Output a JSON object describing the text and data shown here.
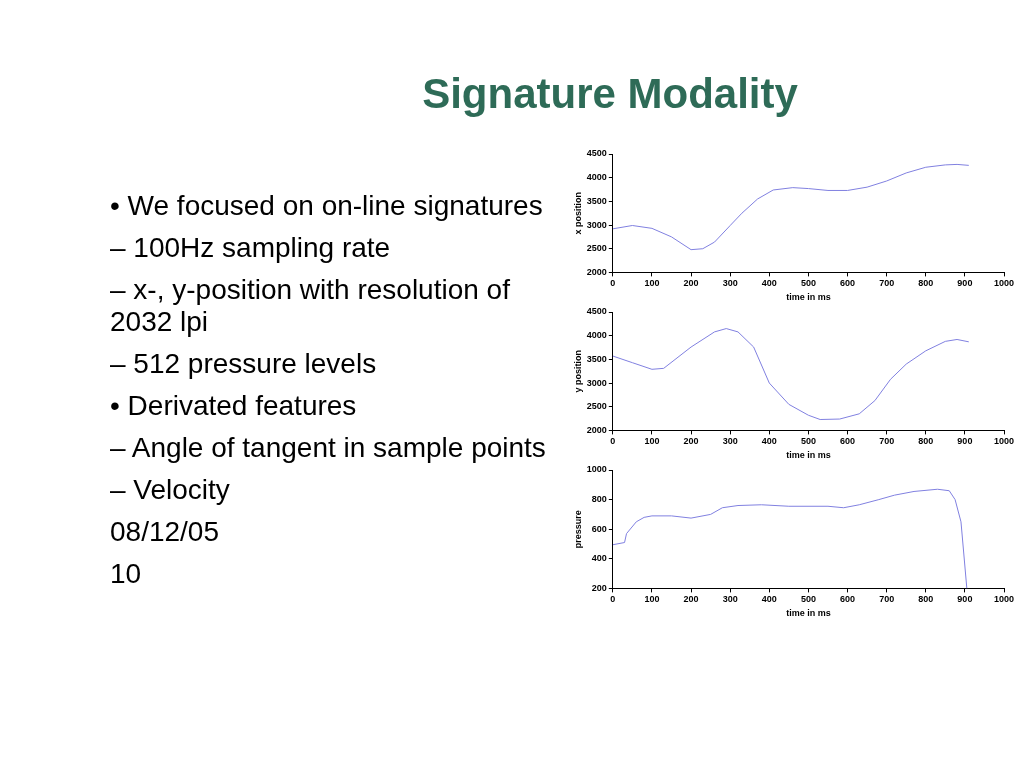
{
  "chart_data": [
    {
      "type": "line",
      "title": "Signature Modality",
      "annotations": [
        "• We focused on on-line signatures",
        "– 100Hz sampling rate",
        "– x-, y-position with resolution of 2032 lpi",
        "– 512 pressure levels",
        "• Derivated features",
        "– Angle of tangent in sample points",
        "– Velocity",
        "08/12/05",
        "10"
      ],
      "xlabel": "time in ms",
      "ylabel": "x position",
      "color": "#8080e0",
      "x": [
        0,
        50,
        100,
        150,
        200,
        230,
        260,
        300,
        330,
        370,
        410,
        460,
        500,
        550,
        600,
        650,
        700,
        750,
        800,
        850,
        880,
        910
      ],
      "values": [
        2920,
        2990,
        2930,
        2750,
        2480,
        2500,
        2640,
        2990,
        3250,
        3550,
        3740,
        3790,
        3770,
        3730,
        3730,
        3800,
        3930,
        4100,
        4220,
        4270,
        4280,
        4260
      ],
      "xlim": [
        0,
        1000
      ],
      "xticks": [
        0,
        100,
        200,
        300,
        400,
        500,
        600,
        700,
        800,
        900,
        1000
      ],
      "ylim": [
        2000,
        4500
      ],
      "yticks": [
        2000,
        2500,
        3000,
        3500,
        4000,
        4500
      ]
    },
    {
      "type": "line",
      "xlabel": "time in ms",
      "ylabel": "y position",
      "color": "#8080e0",
      "x": [
        0,
        50,
        100,
        130,
        200,
        260,
        290,
        320,
        360,
        400,
        450,
        500,
        530,
        580,
        630,
        670,
        710,
        750,
        800,
        850,
        880,
        910
      ],
      "values": [
        3570,
        3430,
        3290,
        3310,
        3760,
        4080,
        4150,
        4080,
        3760,
        3000,
        2550,
        2320,
        2230,
        2240,
        2350,
        2630,
        3080,
        3400,
        3680,
        3880,
        3920,
        3870
      ],
      "xlim": [
        0,
        1000
      ],
      "xticks": [
        0,
        100,
        200,
        300,
        400,
        500,
        600,
        700,
        800,
        900,
        1000
      ],
      "ylim": [
        2000,
        4500
      ],
      "yticks": [
        2000,
        2500,
        3000,
        3500,
        4000,
        4500
      ]
    },
    {
      "type": "line",
      "xlabel": "time in ms",
      "ylabel": "pressure",
      "color": "#8080e0",
      "x": [
        0,
        30,
        35,
        60,
        80,
        100,
        150,
        200,
        250,
        280,
        320,
        380,
        450,
        550,
        590,
        630,
        680,
        720,
        770,
        830,
        860,
        875,
        890,
        905
      ],
      "values": [
        495,
        510,
        570,
        650,
        680,
        690,
        690,
        675,
        700,
        745,
        760,
        765,
        755,
        755,
        745,
        765,
        800,
        830,
        855,
        870,
        860,
        800,
        650,
        200
      ],
      "xlim": [
        0,
        1000
      ],
      "xticks": [
        0,
        100,
        200,
        300,
        400,
        500,
        600,
        700,
        800,
        900,
        1000
      ],
      "ylim": [
        200,
        1000
      ],
      "yticks": [
        200,
        400,
        600,
        800,
        1000
      ]
    }
  ]
}
